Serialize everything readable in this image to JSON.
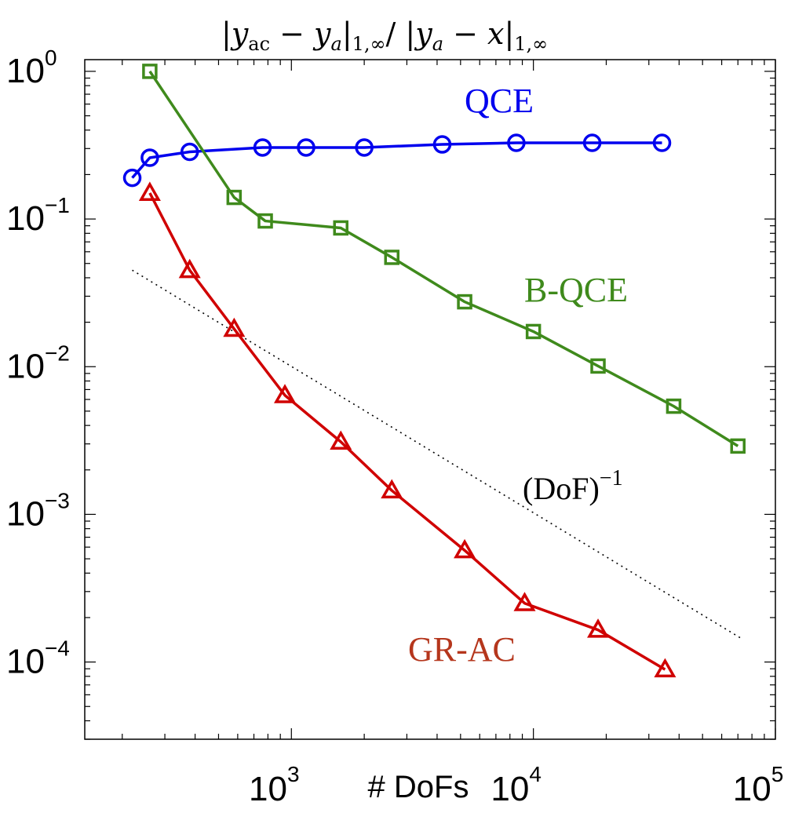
{
  "chart_data": {
    "type": "line",
    "title": "|y_ac − y_a|_{1,∞} / |y_a − x|_{1,∞}",
    "title_parts": {
      "bar1": "|",
      "y1": "y",
      "sub1": "ac",
      "minus1": " − ",
      "y2": "y",
      "sub2": "a",
      "bar2": "|",
      "sub3": "1,∞",
      "slash": "/ ",
      "bar3": "|",
      "y3": "y",
      "sub4": "a",
      "minus2": " − ",
      "x": "x",
      "bar4": "|",
      "sub5": "1,∞"
    },
    "xlabel": "# DoFs",
    "ylabel": "",
    "x_scale": "log",
    "y_scale": "log",
    "xlim": [
      140,
      100000
    ],
    "ylim": [
      3e-05,
      1.2
    ],
    "x_ticks": [
      {
        "value": 1000,
        "base": "10",
        "exp": "3"
      },
      {
        "value": 10000,
        "base": "10",
        "exp": "4"
      },
      {
        "value": 100000,
        "base": "10",
        "exp": "5"
      }
    ],
    "y_ticks": [
      {
        "value": 1,
        "base": "10",
        "exp": "0"
      },
      {
        "value": 0.1,
        "base": "10",
        "exp": "−1"
      },
      {
        "value": 0.01,
        "base": "10",
        "exp": "−2"
      },
      {
        "value": 0.001,
        "base": "10",
        "exp": "−3"
      },
      {
        "value": 0.0001,
        "base": "10",
        "exp": "−4"
      }
    ],
    "grid": false,
    "legend": "inline labels",
    "series": [
      {
        "name": "QCE",
        "color": "#0000ee",
        "marker": "circle",
        "x": [
          220,
          260,
          380,
          760,
          1150,
          2000,
          4200,
          8500,
          17500,
          34000
        ],
        "y": [
          0.19,
          0.26,
          0.285,
          0.305,
          0.305,
          0.305,
          0.32,
          0.328,
          0.328,
          0.328
        ]
      },
      {
        "name": "B-QCE",
        "color": "#3f8a1c",
        "marker": "square",
        "x": [
          260,
          580,
          780,
          1600,
          2600,
          5200,
          10000,
          18500,
          38000,
          70000
        ],
        "y": [
          1.0,
          0.14,
          0.097,
          0.087,
          0.055,
          0.0275,
          0.0173,
          0.0101,
          0.0054,
          0.0029
        ]
      },
      {
        "name": "GR-AC",
        "color": "#d00000",
        "marker": "triangle",
        "x": [
          260,
          380,
          580,
          940,
          1600,
          2600,
          5200,
          9200,
          18500,
          35000
        ],
        "y": [
          0.15,
          0.045,
          0.018,
          0.0064,
          0.0031,
          0.00145,
          0.00057,
          0.00025,
          0.000165,
          8.9e-05
        ]
      }
    ],
    "reference_line": {
      "label_base": "(DoF)",
      "label_exp": "−1",
      "style": "dotted",
      "color": "#000000",
      "x": [
        220,
        72000
      ],
      "y": [
        0.045,
        0.000145
      ]
    },
    "series_label_colors": {
      "QCE": "#0000ee",
      "B-QCE": "#3f8a1c",
      "GR-AC": "#b5361c"
    }
  }
}
